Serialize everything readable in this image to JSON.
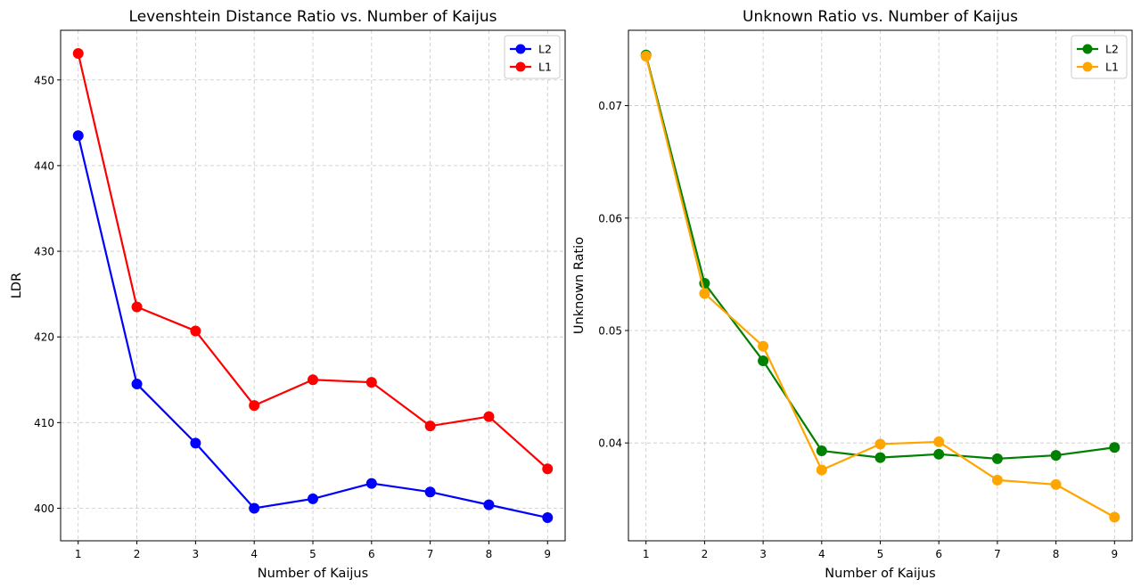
{
  "chart_data": [
    {
      "type": "line",
      "title": "Levenshtein Distance Ratio vs. Number of Kaijus",
      "xlabel": "Number of Kaijus",
      "ylabel": "LDR",
      "x": [
        1,
        2,
        3,
        4,
        5,
        6,
        7,
        8,
        9
      ],
      "xlim": [
        0.7,
        9.3
      ],
      "ylim": [
        396.2,
        455.8
      ],
      "xticks": [
        1,
        2,
        3,
        4,
        5,
        6,
        7,
        8,
        9
      ],
      "yticks": [
        400,
        410,
        420,
        430,
        440,
        450
      ],
      "ytick_labels": [
        "400",
        "410",
        "420",
        "430",
        "440",
        "450"
      ],
      "grid": true,
      "legend_position": "top-right",
      "series": [
        {
          "name": "L2",
          "color": "#0000ff",
          "marker": "circle",
          "values": [
            443.5,
            414.5,
            407.6,
            400.0,
            401.1,
            402.9,
            401.9,
            400.4,
            398.9
          ]
        },
        {
          "name": "L1",
          "color": "#ff0000",
          "marker": "circle",
          "values": [
            453.1,
            423.5,
            420.7,
            412.0,
            415.0,
            414.7,
            409.6,
            410.7,
            404.6
          ]
        }
      ]
    },
    {
      "type": "line",
      "title": "Unknown Ratio vs. Number of Kaijus",
      "xlabel": "Number of Kaijus",
      "ylabel": "Unknown Ratio",
      "x": [
        1,
        2,
        3,
        4,
        5,
        6,
        7,
        8,
        9
      ],
      "xlim": [
        0.7,
        9.3
      ],
      "ylim": [
        0.0313,
        0.0767
      ],
      "xticks": [
        1,
        2,
        3,
        4,
        5,
        6,
        7,
        8,
        9
      ],
      "yticks": [
        0.04,
        0.05,
        0.06,
        0.07
      ],
      "ytick_labels": [
        "0.04",
        "0.05",
        "0.06",
        "0.07"
      ],
      "grid": true,
      "legend_position": "top-right",
      "series": [
        {
          "name": "L2",
          "color": "#008000",
          "marker": "circle",
          "values": [
            0.0745,
            0.0542,
            0.0473,
            0.0393,
            0.0387,
            0.039,
            0.0386,
            0.0389,
            0.0396
          ]
        },
        {
          "name": "L1",
          "color": "#ffa500",
          "marker": "circle",
          "values": [
            0.0744,
            0.0533,
            0.0486,
            0.0376,
            0.0399,
            0.0401,
            0.0367,
            0.0363,
            0.0334
          ]
        }
      ]
    }
  ]
}
